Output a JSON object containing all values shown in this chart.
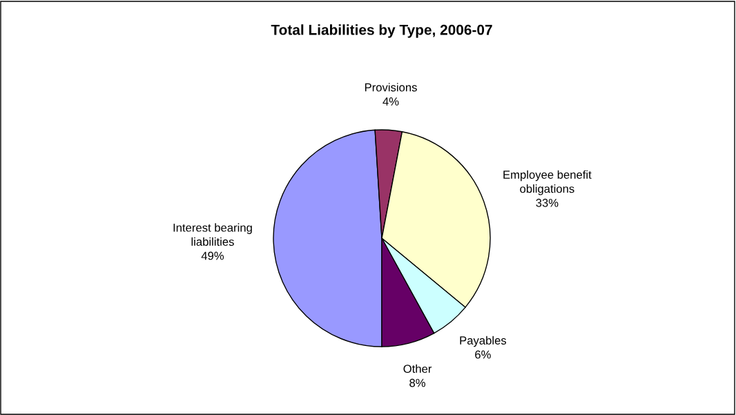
{
  "chart_data": {
    "type": "pie",
    "title": "Total Liabilities by Type, 2006-07",
    "categories": [
      "Interest bearing\nliabilities",
      "Provisions",
      "Employee benefit\nobligations",
      "Payables",
      "Other"
    ],
    "values": [
      49,
      4,
      33,
      6,
      8
    ],
    "value_labels": [
      "49%",
      "4%",
      "33%",
      "6%",
      "8%"
    ],
    "colors": [
      "#9999ff",
      "#993366",
      "#ffffcc",
      "#ccffff",
      "#660066"
    ],
    "legend": false
  }
}
